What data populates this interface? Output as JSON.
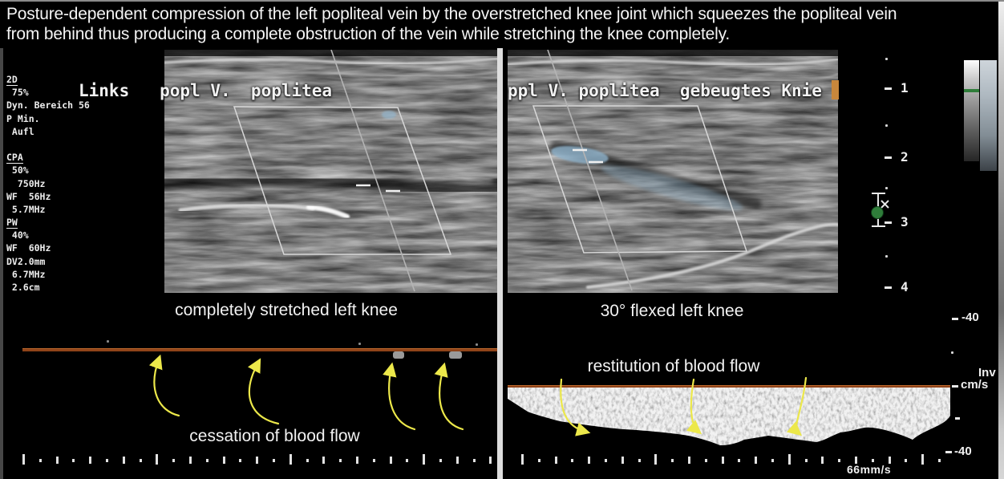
{
  "title": {
    "line1": "Posture-dependent compression of the left popliteal vein by the overstretched knee joint which squeezes the popliteal vein",
    "line2": "from behind thus producing a complete obstruction of the vein while stretching the knee completely."
  },
  "left_panel": {
    "header": "Links   popl V.  poplitea",
    "caption": "completely stretched left knee",
    "annotation": "cessation of blood flow",
    "params": [
      {
        "label": "2D",
        "style": "group"
      },
      {
        "label": " 75%",
        "style": "line"
      },
      {
        "label": "Dyn. Bereich 56",
        "style": "line"
      },
      {
        "label": "P Min.",
        "style": "line"
      },
      {
        "label": " Aufl",
        "style": "line"
      },
      {
        "label": "",
        "style": "blank"
      },
      {
        "label": "CPA",
        "style": "group"
      },
      {
        "label": " 50%",
        "style": "line"
      },
      {
        "label": "  750Hz",
        "style": "line"
      },
      {
        "label": "WF  56Hz",
        "style": "line"
      },
      {
        "label": " 5.7MHz",
        "style": "line"
      },
      {
        "label": "PW",
        "style": "group"
      },
      {
        "label": " 40%",
        "style": "line"
      },
      {
        "label": "WF  60Hz",
        "style": "line"
      },
      {
        "label": "DV2.0mm",
        "style": "line"
      },
      {
        "label": " 6.7MHz",
        "style": "line"
      },
      {
        "label": " 2.6cm",
        "style": "line"
      }
    ]
  },
  "right_panel": {
    "header": "ppl V. poplitea  gebeugtes Knie",
    "caption": "30° flexed left knee",
    "annotation": "restitution of blood flow",
    "sweep_speed": "66mm/s"
  },
  "scales": {
    "depth_marks": [
      "1",
      "2",
      "3",
      "4"
    ],
    "velocity_top": "-40",
    "velocity_bottom": "-40",
    "invert_label": "Inv",
    "unit_label": "cm/s",
    "focus_marker": "x"
  },
  "colors": {
    "baseline": "#8f4319",
    "arrow": "#ece84a",
    "flow_blue": "#8fb3cc",
    "focus_green": "#2f7d3a",
    "cursor_orange": "#c8873c"
  }
}
